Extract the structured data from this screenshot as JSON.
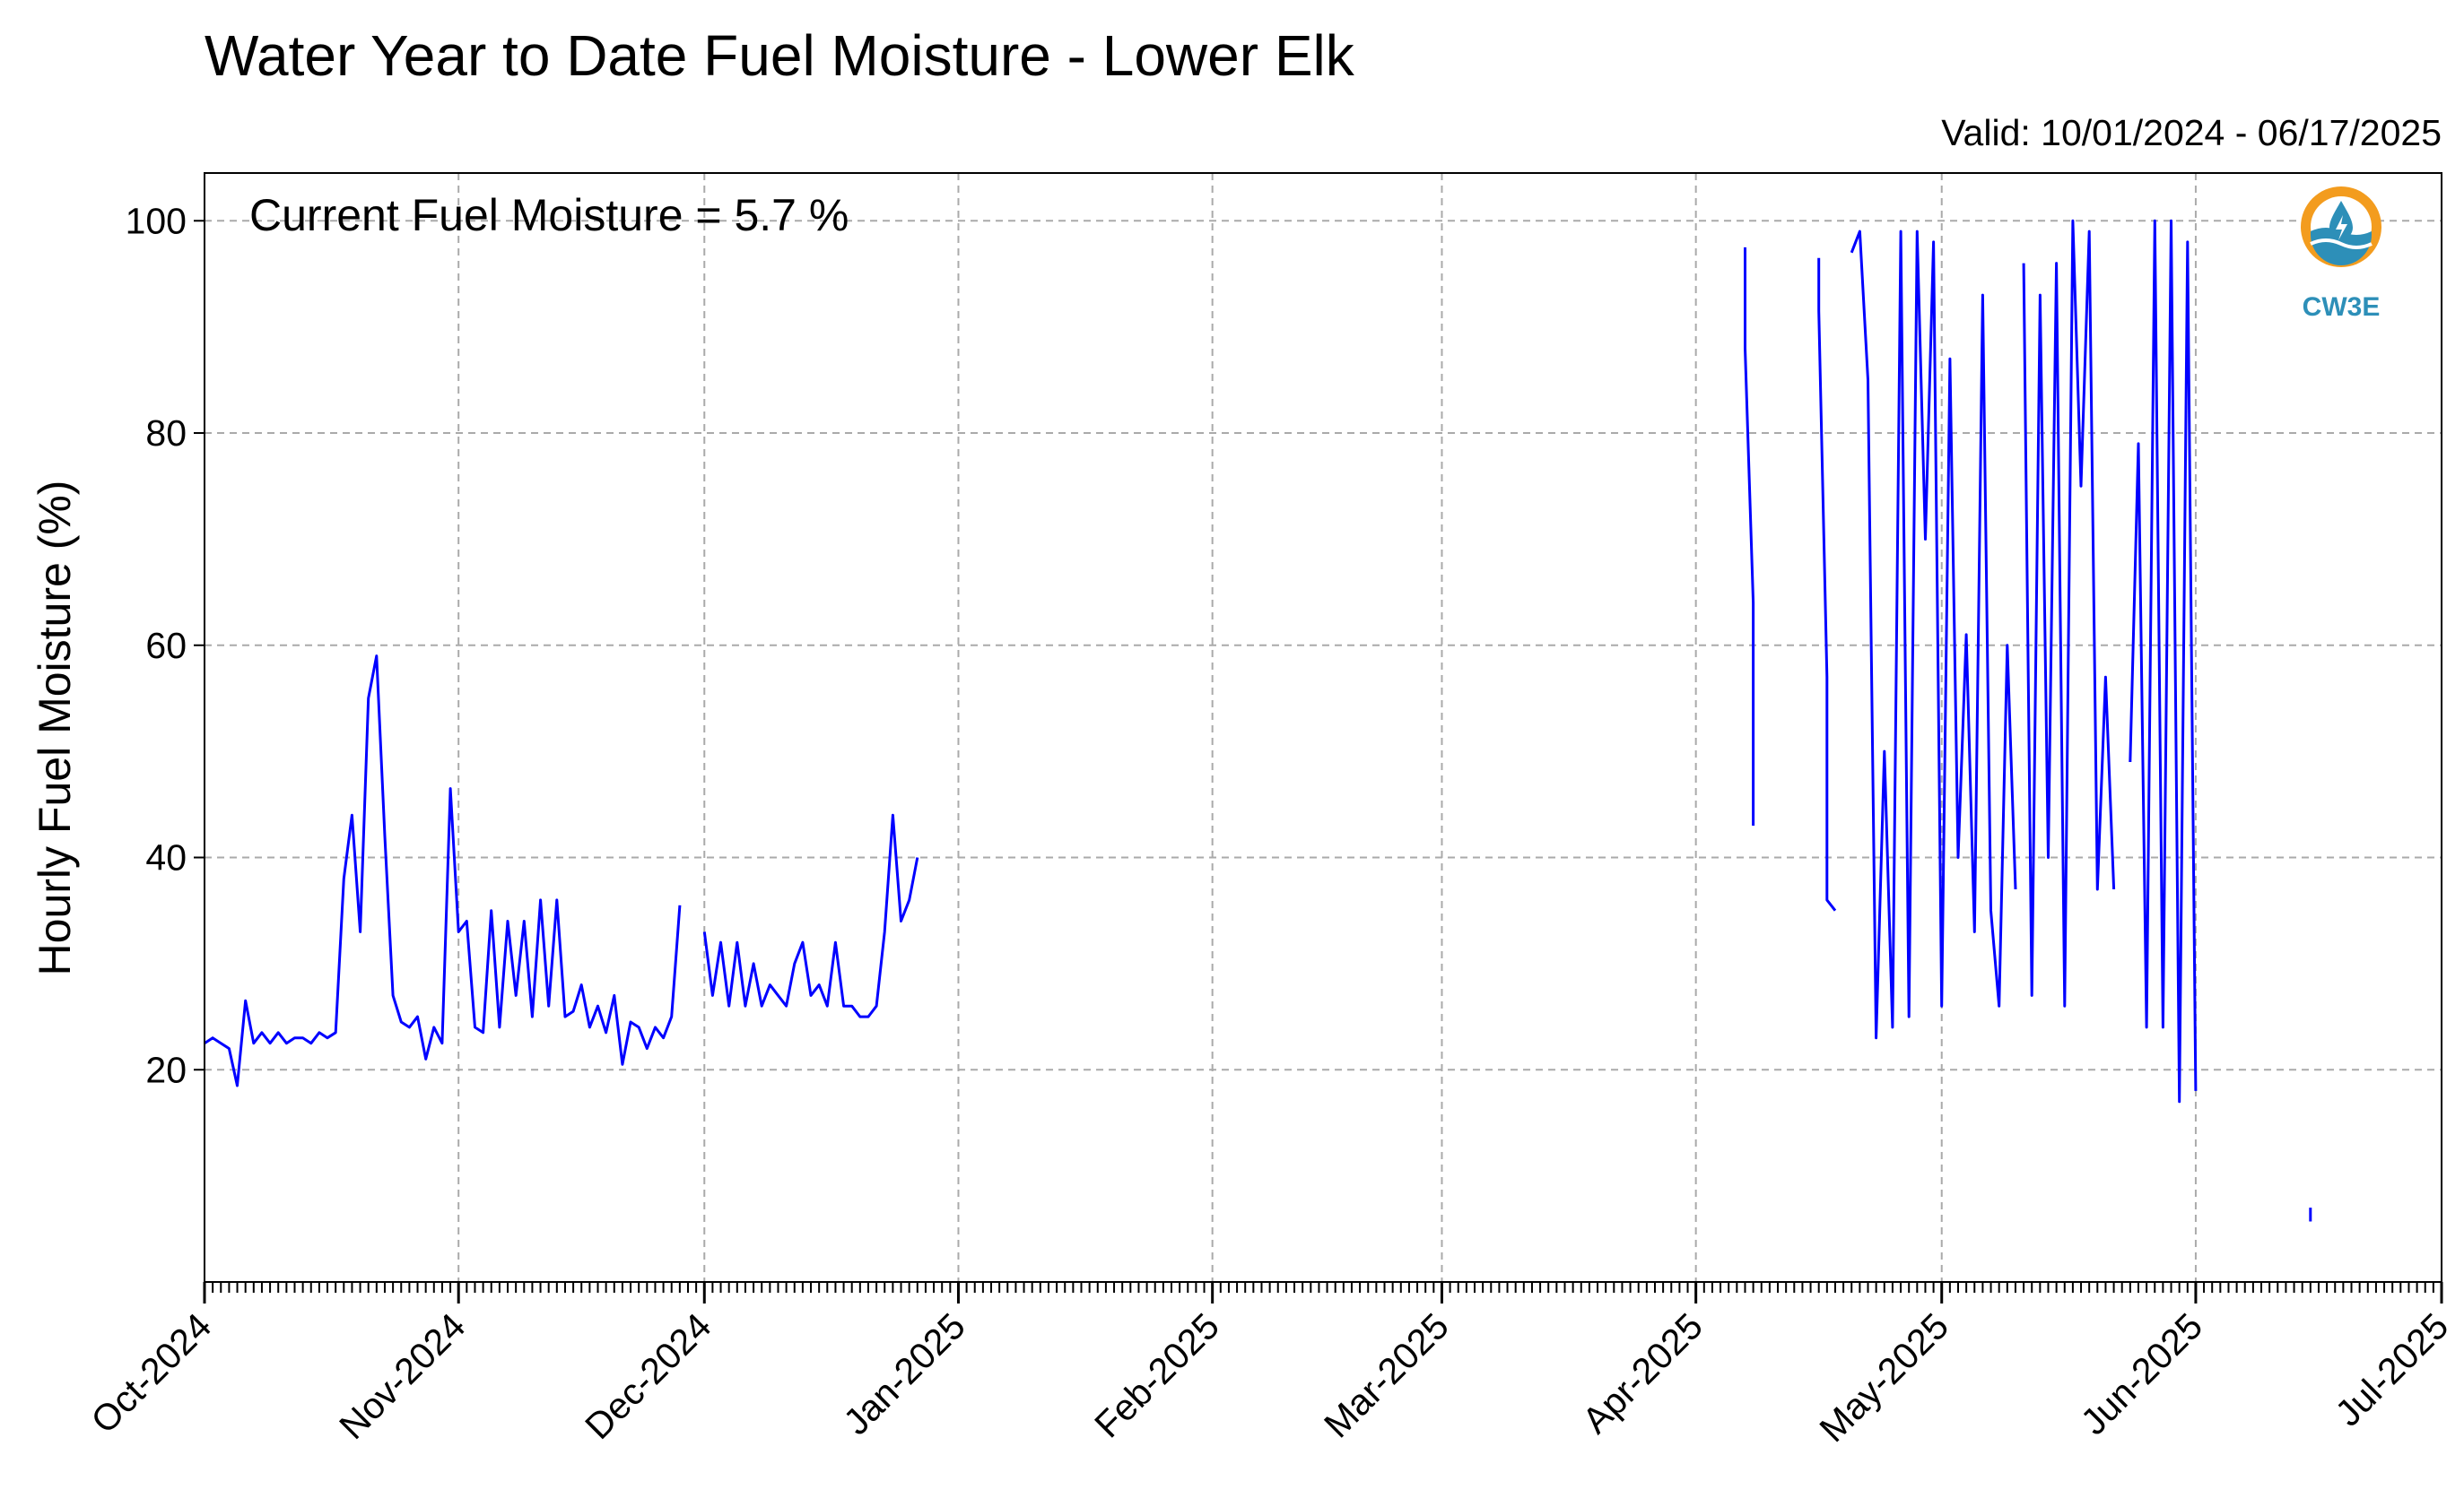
{
  "chart_data": {
    "type": "line",
    "title": "Water Year to Date Fuel Moisture - Lower Elk",
    "valid_label": "Valid: 10/01/2024 - 06/17/2025",
    "ylabel": "Hourly Fuel Moisture (%)",
    "xlabel": "",
    "annotation": "Current Fuel Moisture = 5.7 %",
    "ylim": [
      0,
      104.5
    ],
    "xlim": [
      "2024-10-01",
      "2025-07-01"
    ],
    "yticks": [
      20,
      40,
      60,
      80,
      100
    ],
    "xticks": [
      "Oct-2024",
      "Nov-2024",
      "Dec-2024",
      "Jan-2025",
      "Feb-2025",
      "Mar-2025",
      "Apr-2025",
      "May-2025",
      "Jun-2025",
      "Jul-2025"
    ],
    "xtick_dates": [
      "2024-10-01",
      "2024-11-01",
      "2024-12-01",
      "2025-01-01",
      "2025-02-01",
      "2025-03-01",
      "2025-04-01",
      "2025-05-01",
      "2025-06-01",
      "2025-07-01"
    ],
    "grid": true,
    "series_color": "#0000ff",
    "logo": {
      "text": "CW3E",
      "ring_color": "#f39c1e",
      "water_color": "#2d8fb8"
    },
    "series": [
      {
        "x": [
          "2024-10-01",
          "2024-10-02",
          "2024-10-03",
          "2024-10-04",
          "2024-10-05",
          "2024-10-06",
          "2024-10-07",
          "2024-10-08",
          "2024-10-09",
          "2024-10-10",
          "2024-10-11",
          "2024-10-12",
          "2024-10-13",
          "2024-10-14",
          "2024-10-15",
          "2024-10-16",
          "2024-10-17",
          "2024-10-18",
          "2024-10-19",
          "2024-10-20",
          "2024-10-21",
          "2024-10-22",
          "2024-10-23",
          "2024-10-24",
          "2024-10-25",
          "2024-10-26",
          "2024-10-27",
          "2024-10-28",
          "2024-10-29",
          "2024-10-30",
          "2024-10-31",
          "2024-11-01",
          "2024-11-02",
          "2024-11-03",
          "2024-11-04",
          "2024-11-05",
          "2024-11-06",
          "2024-11-07",
          "2024-11-08",
          "2024-11-09",
          "2024-11-10",
          "2024-11-11",
          "2024-11-12",
          "2024-11-13",
          "2024-11-14",
          "2024-11-15",
          "2024-11-16",
          "2024-11-17",
          "2024-11-18",
          "2024-11-19",
          "2024-11-20",
          "2024-11-21",
          "2024-11-22",
          "2024-11-23",
          "2024-11-24",
          "2024-11-25",
          "2024-11-26",
          "2024-11-27",
          "2024-11-28"
        ],
        "y": [
          22.5,
          23,
          22.5,
          22,
          18.5,
          26.5,
          22.5,
          23.5,
          22.5,
          23.5,
          22.5,
          23,
          23,
          22.5,
          23.5,
          23,
          23.5,
          38,
          44,
          33,
          55,
          59,
          42,
          27,
          24.5,
          24,
          25,
          21,
          24,
          22.5,
          46.5,
          33,
          34,
          24,
          23.5,
          35,
          24,
          34,
          27,
          34,
          25,
          36,
          26,
          36,
          25,
          25.5,
          28,
          24,
          26,
          23.5,
          27,
          20.5,
          24.5,
          24,
          22,
          24,
          23,
          25,
          35.5
        ]
      },
      {
        "x": [
          "2024-12-01",
          "2024-12-02",
          "2024-12-03",
          "2024-12-04",
          "2024-12-05",
          "2024-12-06",
          "2024-12-07",
          "2024-12-08",
          "2024-12-09",
          "2024-12-10",
          "2024-12-11",
          "2024-12-12",
          "2024-12-13",
          "2024-12-14",
          "2024-12-15",
          "2024-12-16",
          "2024-12-17",
          "2024-12-18",
          "2024-12-19",
          "2024-12-20",
          "2024-12-21",
          "2024-12-22",
          "2024-12-23",
          "2024-12-24",
          "2024-12-25",
          "2024-12-26",
          "2024-12-27"
        ],
        "y": [
          33,
          27,
          32,
          26,
          32,
          26,
          30,
          26,
          28,
          27,
          26,
          30,
          32,
          27,
          28,
          26,
          32,
          26,
          26,
          25,
          25,
          26,
          33,
          44,
          34,
          36,
          40
        ]
      },
      {
        "x": [
          "2025-04-07",
          "2025-04-07",
          "2025-04-08",
          "2025-04-08"
        ],
        "y": [
          97.5,
          88,
          64,
          43
        ]
      },
      {
        "x": [
          "2025-04-16",
          "2025-04-16",
          "2025-04-17",
          "2025-04-17",
          "2025-04-18"
        ],
        "y": [
          96.5,
          91.5,
          57,
          36,
          35
        ]
      },
      {
        "x": [
          "2025-04-20",
          "2025-04-21",
          "2025-04-22",
          "2025-04-23",
          "2025-04-24",
          "2025-04-25",
          "2025-04-26",
          "2025-04-27",
          "2025-04-28",
          "2025-04-29",
          "2025-04-30",
          "2025-05-01",
          "2025-05-02",
          "2025-05-03",
          "2025-05-04",
          "2025-05-05",
          "2025-05-06",
          "2025-05-07",
          "2025-05-08",
          "2025-05-09",
          "2025-05-10"
        ],
        "y": [
          97,
          99,
          85,
          23,
          50,
          24,
          99,
          25,
          99,
          70,
          98,
          26,
          87,
          40,
          61,
          33,
          93,
          35,
          26,
          60,
          37
        ]
      },
      {
        "x": [
          "2025-05-11",
          "2025-05-12",
          "2025-05-13",
          "2025-05-14",
          "2025-05-15",
          "2025-05-16",
          "2025-05-17",
          "2025-05-18",
          "2025-05-19",
          "2025-05-20",
          "2025-05-21",
          "2025-05-22"
        ],
        "y": [
          96,
          27,
          93,
          40,
          96,
          26,
          100,
          75,
          99,
          37,
          57,
          37
        ]
      },
      {
        "x": [
          "2025-05-24",
          "2025-05-25",
          "2025-05-26",
          "2025-05-27",
          "2025-05-28",
          "2025-05-29",
          "2025-05-30",
          "2025-05-31",
          "2025-06-01"
        ],
        "y": [
          49,
          79,
          24,
          100,
          24,
          100,
          17,
          98,
          18
        ]
      },
      {
        "x": [
          "2025-06-15",
          "2025-06-15"
        ],
        "y": [
          7,
          5.7
        ]
      }
    ]
  }
}
